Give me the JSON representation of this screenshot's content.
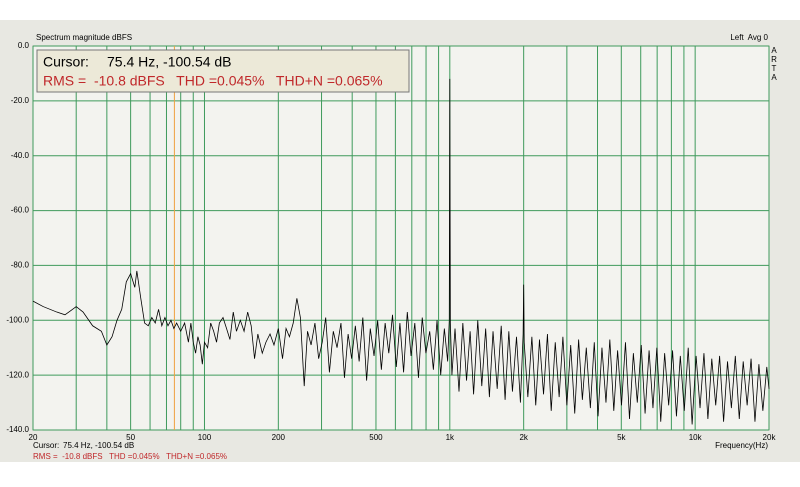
{
  "chart_data": {
    "type": "line",
    "title": "Spectrum magnitude dBFS",
    "channel": "Left  Avg 0",
    "app": "ARTA",
    "x_label": "Frequency(Hz)",
    "log_x": true,
    "grid": true,
    "grid_color": "#3f9a5c",
    "cursor_color": "#f0a040",
    "cursor": {
      "label": "Cursor:",
      "readout": "75.4 Hz, -100.54 dB",
      "frequency": 75.4
    },
    "stats": "RMS =  -10.8 dBFS   THD =0.045%   THD+N =0.065%",
    "xlim": [
      20,
      20000
    ],
    "xticks": [
      20,
      50,
      100,
      200,
      500,
      {
        "value": 1000,
        "label": "1k"
      },
      {
        "value": 2000,
        "label": "2k"
      },
      {
        "value": 5000,
        "label": "5k"
      },
      {
        "value": 10000,
        "label": "10k"
      },
      {
        "value": 20000,
        "label": "20k"
      }
    ],
    "xminor": [
      30,
      40,
      60,
      70,
      80,
      90,
      300,
      400,
      600,
      700,
      800,
      900,
      3000,
      4000,
      6000,
      7000,
      8000,
      9000
    ],
    "ylim": [
      -140,
      0
    ],
    "yticks": [
      {
        "value": 0,
        "label": "0.0"
      },
      {
        "value": -20,
        "label": "-20.0"
      },
      {
        "value": -40,
        "label": "-40.0"
      },
      {
        "value": -60,
        "label": "-60.0"
      },
      {
        "value": -80,
        "label": "-80.0"
      },
      {
        "value": -100,
        "label": "-100.0"
      },
      {
        "value": -120,
        "label": "-120.0"
      },
      {
        "value": -140,
        "label": "-140.0"
      }
    ],
    "color": "#000000",
    "x": [
      20,
      22,
      25,
      27,
      29,
      30,
      32,
      35,
      38,
      40,
      42,
      44,
      46,
      48,
      50,
      52,
      53,
      55,
      57,
      59,
      61,
      63,
      65,
      67,
      69,
      71,
      73,
      75,
      77,
      80,
      83,
      86,
      88,
      90,
      92,
      94,
      96,
      98,
      100,
      103,
      106,
      109,
      112,
      115,
      119,
      123,
      127,
      131,
      135,
      140,
      145,
      150,
      155,
      160,
      165,
      172,
      178,
      185,
      192,
      200,
      208,
      215,
      222,
      230,
      238,
      246,
      255,
      263,
      272,
      282,
      292,
      302,
      312,
      323,
      335,
      347,
      360,
      372,
      385,
      398,
      412,
      427,
      442,
      458,
      474,
      491,
      508,
      526,
      545,
      564,
      584,
      605,
      626,
      648,
      671,
      695,
      720,
      745,
      772,
      799,
      828,
      857,
      887,
      918,
      950,
      980,
      995,
      1000,
      1005,
      1020,
      1050,
      1090,
      1130,
      1170,
      1210,
      1250,
      1300,
      1350,
      1400,
      1450,
      1500,
      1560,
      1620,
      1680,
      1740,
      1800,
      1870,
      1940,
      1990,
      2000,
      2010,
      2080,
      2160,
      2240,
      2320,
      2410,
      2500,
      2590,
      2690,
      2790,
      2890,
      3000,
      3110,
      3230,
      3350,
      3470,
      3600,
      3740,
      3880,
      4020,
      4170,
      4330,
      4490,
      4660,
      4830,
      5010,
      5200,
      5400,
      5600,
      5810,
      6030,
      6250,
      6490,
      6730,
      6980,
      7240,
      7510,
      7800,
      8090,
      8390,
      8700,
      9030,
      9370,
      9720,
      10090,
      10470,
      10860,
      11270,
      11690,
      12130,
      12580,
      13060,
      13550,
      14050,
      14580,
      15130,
      15700,
      16290,
      16900,
      17530,
      18190,
      18880,
      19590,
      20000
    ],
    "values": [
      -93,
      -95,
      -97,
      -98,
      -96,
      -95,
      -97,
      -102,
      -104,
      -109,
      -106,
      -100,
      -96,
      -86,
      -83,
      -88,
      -82,
      -92,
      -101,
      -102,
      -99,
      -101,
      -96,
      -102,
      -99,
      -102,
      -100,
      -103,
      -101,
      -104,
      -101,
      -108,
      -101,
      -108,
      -112,
      -106,
      -109,
      -116,
      -108,
      -110,
      -101,
      -104,
      -108,
      -101,
      -99,
      -103,
      -107,
      -97,
      -104,
      -100,
      -104,
      -97,
      -102,
      -114,
      -105,
      -112,
      -108,
      -105,
      -109,
      -103,
      -114,
      -103,
      -106,
      -101,
      -92,
      -99,
      -124,
      -104,
      -109,
      -101,
      -114,
      -108,
      -99,
      -119,
      -104,
      -110,
      -101,
      -121,
      -105,
      -114,
      -102,
      -115,
      -99,
      -122,
      -103,
      -113,
      -100,
      -118,
      -101,
      -112,
      -98,
      -117,
      -101,
      -119,
      -97,
      -113,
      -101,
      -121,
      -99,
      -112,
      -104,
      -118,
      -100,
      -120,
      -103,
      -115,
      -100,
      -12,
      -101,
      -120,
      -103,
      -126,
      -101,
      -122,
      -104,
      -127,
      -100,
      -124,
      -103,
      -128,
      -104,
      -125,
      -102,
      -129,
      -104,
      -126,
      -106,
      -130,
      -105,
      -87,
      -108,
      -128,
      -106,
      -131,
      -107,
      -127,
      -105,
      -133,
      -108,
      -128,
      -106,
      -131,
      -109,
      -134,
      -107,
      -129,
      -110,
      -132,
      -108,
      -135,
      -110,
      -130,
      -107,
      -133,
      -111,
      -131,
      -108,
      -136,
      -112,
      -130,
      -109,
      -134,
      -111,
      -132,
      -110,
      -137,
      -112,
      -131,
      -111,
      -135,
      -113,
      -133,
      -110,
      -138,
      -113,
      -132,
      -112,
      -136,
      -114,
      -131,
      -113,
      -137,
      -115,
      -132,
      -113,
      -136,
      -115,
      -131,
      -114,
      -137,
      -116,
      -133,
      -117,
      -125
    ]
  }
}
